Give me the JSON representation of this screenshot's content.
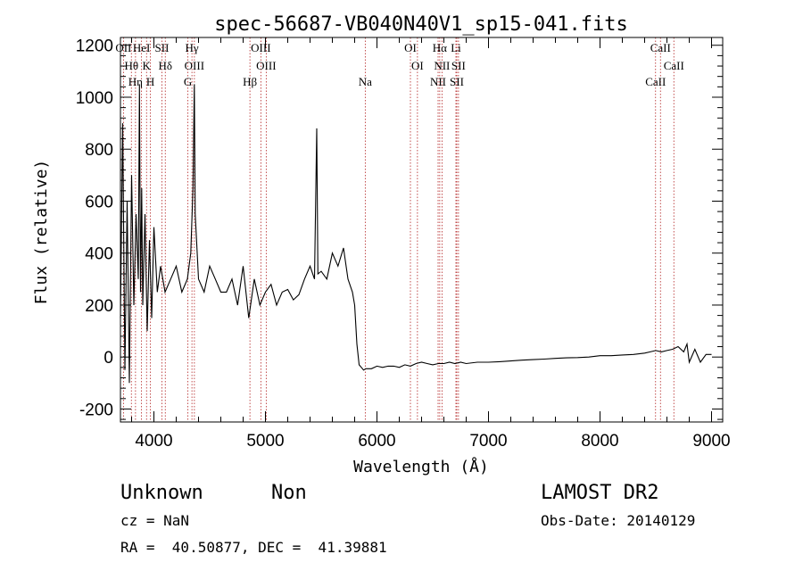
{
  "chart_data": {
    "type": "line",
    "title": "spec-56687-VB040N40V1_sp15-041.fits",
    "xlabel": "Wavelength (Å)",
    "ylabel": "Flux (relative)",
    "xlim": [
      3700,
      9100
    ],
    "ylim": [
      -250,
      1230
    ],
    "xticks": [
      4000,
      5000,
      6000,
      7000,
      8000,
      9000
    ],
    "yticks": [
      -200,
      0,
      200,
      400,
      600,
      800,
      1000,
      1200
    ],
    "grid": false,
    "series": [
      {
        "x": [
          3700,
          3720,
          3740,
          3760,
          3780,
          3800,
          3820,
          3840,
          3860,
          3870,
          3880,
          3890,
          3900,
          3920,
          3940,
          3960,
          3980,
          4000,
          4030,
          4060,
          4100,
          4150,
          4200,
          4250,
          4300,
          4330,
          4350,
          4362,
          4370,
          4400,
          4450,
          4500,
          4550,
          4600,
          4650,
          4700,
          4750,
          4800,
          4850,
          4900,
          4950,
          5000,
          5050,
          5100,
          5150,
          5200,
          5250,
          5300,
          5350,
          5400,
          5440,
          5460,
          5470,
          5500,
          5550,
          5600,
          5650,
          5700,
          5740,
          5780,
          5800,
          5820,
          5840,
          5860,
          5880,
          5900,
          5950,
          6000,
          6050,
          6100,
          6150,
          6200,
          6250,
          6300,
          6350,
          6400,
          6450,
          6500,
          6550,
          6600,
          6650,
          6700,
          6750,
          6800,
          6900,
          7000,
          7100,
          7200,
          7300,
          7400,
          7500,
          7600,
          7700,
          7800,
          7900,
          8000,
          8100,
          8200,
          8300,
          8400,
          8450,
          8500,
          8550,
          8600,
          8650,
          8700,
          8750,
          8780,
          8800,
          8850,
          8900,
          8950,
          9000
        ],
        "values": [
          150,
          900,
          -50,
          600,
          -100,
          700,
          200,
          550,
          300,
          1050,
          250,
          650,
          200,
          550,
          100,
          450,
          150,
          500,
          250,
          350,
          250,
          300,
          350,
          250,
          300,
          400,
          650,
          1050,
          550,
          300,
          250,
          350,
          300,
          250,
          250,
          300,
          200,
          350,
          150,
          300,
          200,
          250,
          280,
          200,
          250,
          260,
          220,
          240,
          300,
          350,
          300,
          880,
          320,
          330,
          300,
          400,
          350,
          420,
          300,
          250,
          200,
          50,
          -30,
          -40,
          -50,
          -45,
          -45,
          -35,
          -40,
          -35,
          -35,
          -40,
          -30,
          -35,
          -25,
          -20,
          -25,
          -30,
          -25,
          -25,
          -20,
          -25,
          -20,
          -25,
          -20,
          -20,
          -18,
          -15,
          -12,
          -10,
          -8,
          -5,
          -3,
          -2,
          0,
          5,
          5,
          8,
          10,
          15,
          20,
          25,
          20,
          25,
          30,
          40,
          20,
          50,
          -20,
          30,
          -20,
          10,
          10
        ]
      }
    ],
    "lines": [
      {
        "name": "OII",
        "x": 3727
      },
      {
        "name": "Hθ",
        "x": 3798
      },
      {
        "name": "Hη",
        "x": 3835
      },
      {
        "name": "HeI",
        "x": 3889
      },
      {
        "name": "K",
        "x": 3934
      },
      {
        "name": "H",
        "x": 3969
      },
      {
        "name": "SII",
        "x": 4072
      },
      {
        "name": "Hδ",
        "x": 4102
      },
      {
        "name": "G",
        "x": 4305
      },
      {
        "name": "Hγ",
        "x": 4341
      },
      {
        "name": "OIII",
        "x": 4363
      },
      {
        "name": "Hβ",
        "x": 4861
      },
      {
        "name": "OIII",
        "x": 4959
      },
      {
        "name": "OIII",
        "x": 5007
      },
      {
        "name": "Na",
        "x": 5895
      },
      {
        "name": "OI",
        "x": 6300
      },
      {
        "name": "OI",
        "x": 6363
      },
      {
        "name": "NII",
        "x": 6548
      },
      {
        "name": "Hα",
        "x": 6563
      },
      {
        "name": "NII",
        "x": 6583
      },
      {
        "name": "SII",
        "x": 6716
      },
      {
        "name": "Li",
        "x": 6708
      },
      {
        "name": "SII",
        "x": 6731
      },
      {
        "name": "CaII",
        "x": 8498
      },
      {
        "name": "CaII",
        "x": 8542
      },
      {
        "name": "CaII",
        "x": 8662
      }
    ]
  },
  "footer": {
    "object_class": "Unknown",
    "object_subclass": "Non",
    "survey": "LAMOST DR2",
    "redshift": "cz = NaN",
    "obs_date": "Obs-Date: 20140129",
    "coords": "RA =  40.50877, DEC =  41.39881"
  },
  "colors": {
    "spectrum": "#000000",
    "line_markers": "#b22222"
  }
}
